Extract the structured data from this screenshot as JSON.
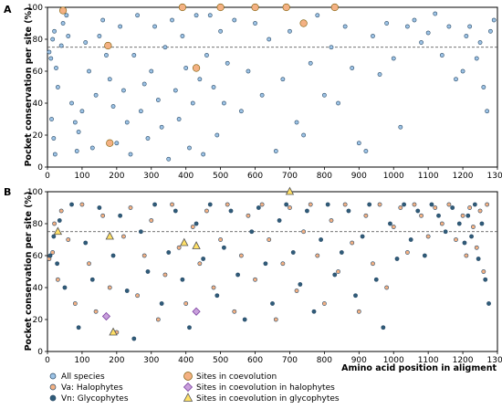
{
  "chart_data": [
    {
      "panel": "A",
      "type": "scatter",
      "xlim": [
        0,
        1300
      ],
      "ylim": [
        0,
        100
      ],
      "xticks": [
        "0",
        "100",
        "200",
        "300",
        "400",
        "500",
        "600",
        "700",
        "800",
        "900",
        "1000",
        "1100",
        "1200",
        "1300"
      ],
      "yticks": [
        "0",
        "20",
        "40",
        "60",
        "80",
        "100"
      ],
      "ylabel": "Pocket conservation per site (%)",
      "threshold": 75,
      "series": [
        {
          "name": "All species",
          "color": "#9dc3e6",
          "points": [
            [
              5,
              72
            ],
            [
              10,
              68
            ],
            [
              15,
              80
            ],
            [
              20,
              85
            ],
            [
              25,
              62
            ],
            [
              30,
              50
            ],
            [
              12,
              30
            ],
            [
              18,
              18
            ],
            [
              22,
              8
            ],
            [
              40,
              76
            ],
            [
              45,
              90
            ],
            [
              55,
              95
            ],
            [
              60,
              82
            ],
            [
              70,
              40
            ],
            [
              80,
              28
            ],
            [
              85,
              10
            ],
            [
              90,
              22
            ],
            [
              100,
              35
            ],
            [
              110,
              78
            ],
            [
              120,
              60
            ],
            [
              130,
              12
            ],
            [
              140,
              45
            ],
            [
              150,
              82
            ],
            [
              160,
              92
            ],
            [
              170,
              70
            ],
            [
              180,
              55
            ],
            [
              190,
              38
            ],
            [
              200,
              15
            ],
            [
              210,
              88
            ],
            [
              220,
              48
            ],
            [
              230,
              28
            ],
            [
              240,
              8
            ],
            [
              250,
              70
            ],
            [
              260,
              95
            ],
            [
              270,
              35
            ],
            [
              280,
              52
            ],
            [
              290,
              18
            ],
            [
              300,
              60
            ],
            [
              310,
              88
            ],
            [
              320,
              42
            ],
            [
              330,
              25
            ],
            [
              340,
              75
            ],
            [
              350,
              5
            ],
            [
              360,
              92
            ],
            [
              370,
              48
            ],
            [
              380,
              30
            ],
            [
              390,
              82
            ],
            [
              400,
              62
            ],
            [
              410,
              12
            ],
            [
              420,
              40
            ],
            [
              430,
              95
            ],
            [
              440,
              55
            ],
            [
              450,
              8
            ],
            [
              460,
              70
            ],
            [
              470,
              95
            ],
            [
              480,
              50
            ],
            [
              490,
              20
            ],
            [
              500,
              85
            ],
            [
              510,
              40
            ],
            [
              520,
              65
            ],
            [
              540,
              92
            ],
            [
              560,
              35
            ],
            [
              580,
              60
            ],
            [
              600,
              90
            ],
            [
              620,
              45
            ],
            [
              640,
              80
            ],
            [
              660,
              10
            ],
            [
              680,
              55
            ],
            [
              700,
              85
            ],
            [
              720,
              28
            ],
            [
              740,
              20
            ],
            [
              760,
              65
            ],
            [
              780,
              95
            ],
            [
              800,
              45
            ],
            [
              820,
              75
            ],
            [
              840,
              40
            ],
            [
              860,
              88
            ],
            [
              880,
              62
            ],
            [
              900,
              15
            ],
            [
              920,
              10
            ],
            [
              940,
              82
            ],
            [
              960,
              58
            ],
            [
              980,
              90
            ],
            [
              1000,
              68
            ],
            [
              1020,
              25
            ],
            [
              1040,
              88
            ],
            [
              1060,
              92
            ],
            [
              1080,
              78
            ],
            [
              1100,
              84
            ],
            [
              1120,
              96
            ],
            [
              1140,
              70
            ],
            [
              1160,
              88
            ],
            [
              1180,
              55
            ],
            [
              1200,
              60
            ],
            [
              1210,
              82
            ],
            [
              1220,
              88
            ],
            [
              1240,
              68
            ],
            [
              1250,
              78
            ],
            [
              1260,
              50
            ],
            [
              1270,
              35
            ],
            [
              1280,
              85
            ],
            [
              1290,
              92
            ]
          ]
        },
        {
          "name": "Sites in coevolution",
          "color": "#f4b183",
          "points": [
            [
              45,
              98
            ],
            [
              175,
              76
            ],
            [
              180,
              15
            ],
            [
              390,
              100
            ],
            [
              430,
              62
            ],
            [
              500,
              100
            ],
            [
              600,
              100
            ],
            [
              690,
              100
            ],
            [
              740,
              90
            ],
            [
              830,
              100
            ]
          ]
        }
      ]
    },
    {
      "panel": "B",
      "type": "scatter",
      "xlim": [
        0,
        1300
      ],
      "ylim": [
        0,
        100
      ],
      "xticks": [
        "0",
        "100",
        "200",
        "300",
        "400",
        "500",
        "600",
        "700",
        "800",
        "900",
        "1000",
        "1100",
        "1200",
        "1300"
      ],
      "yticks": [
        "0",
        "20",
        "40",
        "60",
        "80",
        "100"
      ],
      "ylabel": "Pocket conservation per site (%)",
      "xlabel": "Amino acid position in aligment",
      "threshold": 75,
      "series": [
        {
          "name": "Va: Halophytes",
          "color": "#f4b183",
          "points": [
            [
              5,
              58
            ],
            [
              15,
              62
            ],
            [
              20,
              80
            ],
            [
              30,
              45
            ],
            [
              40,
              88
            ],
            [
              60,
              70
            ],
            [
              80,
              30
            ],
            [
              100,
              92
            ],
            [
              120,
              55
            ],
            [
              140,
              25
            ],
            [
              160,
              85
            ],
            [
              180,
              40
            ],
            [
              200,
              12
            ],
            [
              220,
              72
            ],
            [
              240,
              90
            ],
            [
              260,
              35
            ],
            [
              280,
              60
            ],
            [
              300,
              82
            ],
            [
              320,
              20
            ],
            [
              340,
              48
            ],
            [
              360,
              92
            ],
            [
              380,
              65
            ],
            [
              400,
              30
            ],
            [
              420,
              78
            ],
            [
              440,
              55
            ],
            [
              460,
              88
            ],
            [
              480,
              40
            ],
            [
              500,
              70
            ],
            [
              520,
              92
            ],
            [
              540,
              25
            ],
            [
              560,
              60
            ],
            [
              580,
              85
            ],
            [
              600,
              45
            ],
            [
              620,
              92
            ],
            [
              640,
              70
            ],
            [
              660,
              20
            ],
            [
              680,
              55
            ],
            [
              700,
              90
            ],
            [
              720,
              38
            ],
            [
              740,
              75
            ],
            [
              760,
              92
            ],
            [
              780,
              60
            ],
            [
              800,
              30
            ],
            [
              820,
              82
            ],
            [
              840,
              50
            ],
            [
              860,
              92
            ],
            [
              880,
              68
            ],
            [
              900,
              25
            ],
            [
              920,
              85
            ],
            [
              940,
              55
            ],
            [
              960,
              92
            ],
            [
              980,
              40
            ],
            [
              1000,
              78
            ],
            [
              1020,
              90
            ],
            [
              1040,
              62
            ],
            [
              1060,
              92
            ],
            [
              1080,
              85
            ],
            [
              1100,
              72
            ],
            [
              1120,
              90
            ],
            [
              1140,
              80
            ],
            [
              1160,
              92
            ],
            [
              1180,
              70
            ],
            [
              1200,
              85
            ],
            [
              1210,
              60
            ],
            [
              1220,
              90
            ],
            [
              1230,
              78
            ],
            [
              1240,
              65
            ],
            [
              1250,
              88
            ],
            [
              1260,
              50
            ],
            [
              1270,
              92
            ]
          ]
        },
        {
          "name": "Vn: Glycophytes",
          "color": "#2f5c7a",
          "points": [
            [
              8,
              60
            ],
            [
              18,
              72
            ],
            [
              28,
              55
            ],
            [
              35,
              82
            ],
            [
              50,
              40
            ],
            [
              70,
              92
            ],
            [
              90,
              15
            ],
            [
              110,
              68
            ],
            [
              130,
              45
            ],
            [
              150,
              90
            ],
            [
              170,
              22
            ],
            [
              190,
              60
            ],
            [
              210,
              85
            ],
            [
              230,
              38
            ],
            [
              250,
              8
            ],
            [
              270,
              75
            ],
            [
              290,
              50
            ],
            [
              310,
              92
            ],
            [
              330,
              30
            ],
            [
              350,
              62
            ],
            [
              370,
              88
            ],
            [
              390,
              45
            ],
            [
              410,
              15
            ],
            [
              430,
              80
            ],
            [
              450,
              58
            ],
            [
              470,
              92
            ],
            [
              490,
              35
            ],
            [
              510,
              65
            ],
            [
              530,
              88
            ],
            [
              550,
              48
            ],
            [
              570,
              20
            ],
            [
              590,
              75
            ],
            [
              610,
              90
            ],
            [
              630,
              55
            ],
            [
              650,
              30
            ],
            [
              670,
              82
            ],
            [
              690,
              92
            ],
            [
              710,
              62
            ],
            [
              730,
              42
            ],
            [
              750,
              88
            ],
            [
              770,
              25
            ],
            [
              790,
              70
            ],
            [
              810,
              92
            ],
            [
              830,
              48
            ],
            [
              850,
              62
            ],
            [
              870,
              88
            ],
            [
              890,
              35
            ],
            [
              910,
              72
            ],
            [
              930,
              92
            ],
            [
              950,
              45
            ],
            [
              970,
              15
            ],
            [
              990,
              80
            ],
            [
              1010,
              58
            ],
            [
              1030,
              92
            ],
            [
              1050,
              70
            ],
            [
              1070,
              88
            ],
            [
              1090,
              60
            ],
            [
              1110,
              92
            ],
            [
              1130,
              85
            ],
            [
              1150,
              75
            ],
            [
              1170,
              90
            ],
            [
              1190,
              80
            ],
            [
              1205,
              68
            ],
            [
              1215,
              85
            ],
            [
              1225,
              72
            ],
            [
              1235,
              92
            ],
            [
              1245,
              58
            ],
            [
              1255,
              80
            ],
            [
              1265,
              45
            ],
            [
              1275,
              30
            ]
          ]
        },
        {
          "name": "Sites in coevolution in halophytes",
          "color": "#c9a0dc",
          "points": [
            [
              170,
              22
            ],
            [
              430,
              25
            ]
          ]
        },
        {
          "name": "Sites in coevolution in glycophytes",
          "color": "#ffe066",
          "points": [
            [
              30,
              75
            ],
            [
              180,
              72
            ],
            [
              190,
              12
            ],
            [
              395,
              68
            ],
            [
              430,
              66
            ],
            [
              700,
              100
            ]
          ]
        }
      ]
    }
  ],
  "legend": {
    "items": [
      {
        "label": "All species",
        "marker": "circle",
        "color": "#9dc3e6"
      },
      {
        "label": "Va: Halophytes",
        "marker": "circle",
        "color": "#f4b183"
      },
      {
        "label": "Vn: Glycophytes",
        "marker": "circle",
        "color": "#2f5c7a"
      },
      {
        "label": "Sites in coevolution",
        "marker": "circle-large",
        "color": "#f4b183"
      },
      {
        "label": "Sites in coevolution in halophytes",
        "marker": "diamond",
        "color": "#c9a0dc"
      },
      {
        "label": "Sites in coevolution in glycophytes",
        "marker": "triangle",
        "color": "#ffe066"
      }
    ]
  }
}
